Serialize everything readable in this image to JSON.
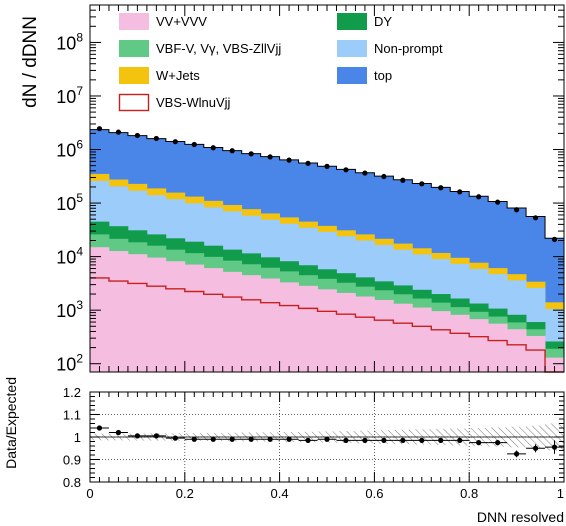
{
  "chart_data": [
    {
      "type": "area",
      "stacked": true,
      "step": true,
      "ylabel": "dN / dDNN",
      "yscale": "log",
      "ylim": [
        70,
        500000000.0
      ],
      "xlim": [
        0,
        1
      ],
      "y_ticks": [
        {
          "value": 100,
          "base": "10",
          "exp": "2"
        },
        {
          "value": 1000,
          "base": "10",
          "exp": "3"
        },
        {
          "value": 10000,
          "base": "10",
          "exp": "4"
        },
        {
          "value": 100000,
          "base": "10",
          "exp": "5"
        },
        {
          "value": 1000000,
          "base": "10",
          "exp": "6"
        },
        {
          "value": 10000000,
          "base": "10",
          "exp": "7"
        },
        {
          "value": 100000000,
          "base": "10",
          "exp": "8"
        }
      ],
      "bin_edges": [
        0,
        0.04,
        0.08,
        0.12,
        0.16,
        0.2,
        0.24,
        0.28,
        0.32,
        0.36,
        0.4,
        0.44,
        0.48,
        0.52,
        0.56,
        0.6,
        0.64,
        0.68,
        0.72,
        0.76,
        0.8,
        0.84,
        0.88,
        0.92,
        0.96,
        1.0
      ],
      "stack_cumulative": [
        {
          "name": "VV+VVV",
          "color": "#f5bde0",
          "values": [
            15000,
            12700,
            11100,
            9600,
            8200,
            7100,
            6100,
            5200,
            4500,
            3900,
            3300,
            2850,
            2450,
            2100,
            1800,
            1550,
            1320,
            1120,
            960,
            820,
            680,
            560,
            440,
            330,
            130
          ]
        },
        {
          "name": "VBF-V, Vγ, VBS-ZllVjj",
          "color": "#5fc985",
          "values": [
            26000,
            21500,
            18500,
            16000,
            13500,
            11600,
            9900,
            8400,
            7200,
            6200,
            5300,
            4500,
            3850,
            3250,
            2750,
            2350,
            1980,
            1650,
            1380,
            1140,
            930,
            760,
            590,
            440,
            190
          ]
        },
        {
          "name": "DY",
          "color": "#119c4c",
          "values": [
            45000,
            37000,
            31000,
            26000,
            22000,
            19000,
            16000,
            13500,
            11500,
            9700,
            8200,
            6900,
            5800,
            4900,
            4100,
            3450,
            2900,
            2400,
            2000,
            1650,
            1330,
            1070,
            820,
            600,
            260
          ]
        },
        {
          "name": "Non-prompt",
          "color": "#9cccfa",
          "values": [
            260000,
            205000,
            170000,
            140000,
            118000,
            99000,
            83000,
            70000,
            58000,
            49000,
            41000,
            34500,
            29000,
            24000,
            20000,
            16500,
            13500,
            11000,
            9000,
            7300,
            5900,
            4700,
            3600,
            2600,
            1050
          ]
        },
        {
          "name": "W+Jets",
          "color": "#f4c30e",
          "values": [
            350000,
            275000,
            228000,
            188000,
            157000,
            132000,
            110000,
            92000,
            77000,
            64000,
            54000,
            45000,
            37500,
            31000,
            26000,
            21500,
            17500,
            14300,
            11700,
            9500,
            7700,
            6100,
            4700,
            3400,
            1400
          ]
        },
        {
          "name": "top",
          "color": "#4a86e8",
          "values": [
            2350000,
            2070000,
            1820000,
            1600000,
            1410000,
            1250000,
            1090000,
            955000,
            840000,
            735000,
            640000,
            560000,
            488000,
            425000,
            368000,
            318000,
            272000,
            232000,
            196000,
            164000,
            134000,
            107000,
            81000,
            56000,
            22000
          ]
        }
      ],
      "signal": {
        "name": "VBS-WlnuVjj",
        "color": "#c8201e",
        "values": [
          4000,
          3500,
          3150,
          2800,
          2500,
          2230,
          1980,
          1760,
          1560,
          1380,
          1220,
          1080,
          950,
          840,
          740,
          650,
          570,
          500,
          430,
          370,
          320,
          270,
          225,
          180,
          70
        ]
      },
      "data_points": {
        "x": [
          0.02,
          0.06,
          0.1,
          0.14,
          0.18,
          0.22,
          0.26,
          0.3,
          0.34,
          0.38,
          0.42,
          0.46,
          0.5,
          0.54,
          0.58,
          0.62,
          0.66,
          0.7,
          0.74,
          0.78,
          0.82,
          0.86,
          0.9,
          0.94,
          0.98
        ],
        "y": [
          2450000,
          2110000,
          1830000,
          1610000,
          1400000,
          1240000,
          1080000,
          948000,
          832000,
          728000,
          634000,
          552000,
          484000,
          418000,
          363000,
          313000,
          267000,
          229000,
          193000,
          162000,
          131000,
          104000,
          75000,
          53000,
          21000
        ]
      },
      "legend": [
        {
          "label": "VV+VVV",
          "color": "#f5bde0",
          "kind": "fill"
        },
        {
          "label": "DY",
          "color": "#119c4c",
          "kind": "fill"
        },
        {
          "label": "VBF-V, Vγ, VBS-ZllVjj",
          "color": "#5fc985",
          "kind": "fill"
        },
        {
          "label": "Non-prompt",
          "color": "#9cccfa",
          "kind": "fill"
        },
        {
          "label": "W+Jets",
          "color": "#f4c30e",
          "kind": "fill"
        },
        {
          "label": "top",
          "color": "#4a86e8",
          "kind": "fill"
        },
        {
          "label": "VBS-WlnuVjj",
          "color": "#c8201e",
          "kind": "line"
        }
      ]
    },
    {
      "type": "scatter",
      "ylabel": "Data/Expected",
      "xlabel": "DNN resolved",
      "xlim": [
        0,
        1
      ],
      "ylim": [
        0.8,
        1.2
      ],
      "y_ticks": [
        "0.8",
        "0.9",
        "1",
        "1.1",
        "1.2"
      ],
      "x_ticks": [
        "0",
        "0.2",
        "0.4",
        "0.6",
        "0.8",
        "1"
      ],
      "grid": true,
      "reference_line": 1.0,
      "x": [
        0.02,
        0.06,
        0.1,
        0.14,
        0.18,
        0.22,
        0.26,
        0.3,
        0.34,
        0.38,
        0.42,
        0.46,
        0.5,
        0.54,
        0.58,
        0.62,
        0.66,
        0.7,
        0.74,
        0.78,
        0.82,
        0.86,
        0.9,
        0.94,
        0.98
      ],
      "y": [
        1.04,
        1.02,
        1.005,
        1.005,
        0.995,
        0.99,
        0.99,
        0.99,
        0.99,
        0.99,
        0.99,
        0.985,
        0.99,
        0.985,
        0.985,
        0.985,
        0.985,
        0.985,
        0.985,
        0.985,
        0.975,
        0.975,
        0.925,
        0.95,
        0.955
      ],
      "y_err": [
        0.005,
        0.005,
        0.005,
        0.005,
        0.005,
        0.005,
        0.005,
        0.005,
        0.005,
        0.005,
        0.005,
        0.005,
        0.006,
        0.006,
        0.006,
        0.007,
        0.007,
        0.008,
        0.008,
        0.009,
        0.01,
        0.012,
        0.015,
        0.018,
        0.03
      ],
      "uncertainty_band": [
        0.015,
        0.015,
        0.016,
        0.016,
        0.017,
        0.017,
        0.018,
        0.019,
        0.02,
        0.021,
        0.022,
        0.023,
        0.025,
        0.026,
        0.028,
        0.03,
        0.032,
        0.034,
        0.036,
        0.038,
        0.04,
        0.043,
        0.046,
        0.05,
        0.06
      ]
    }
  ]
}
